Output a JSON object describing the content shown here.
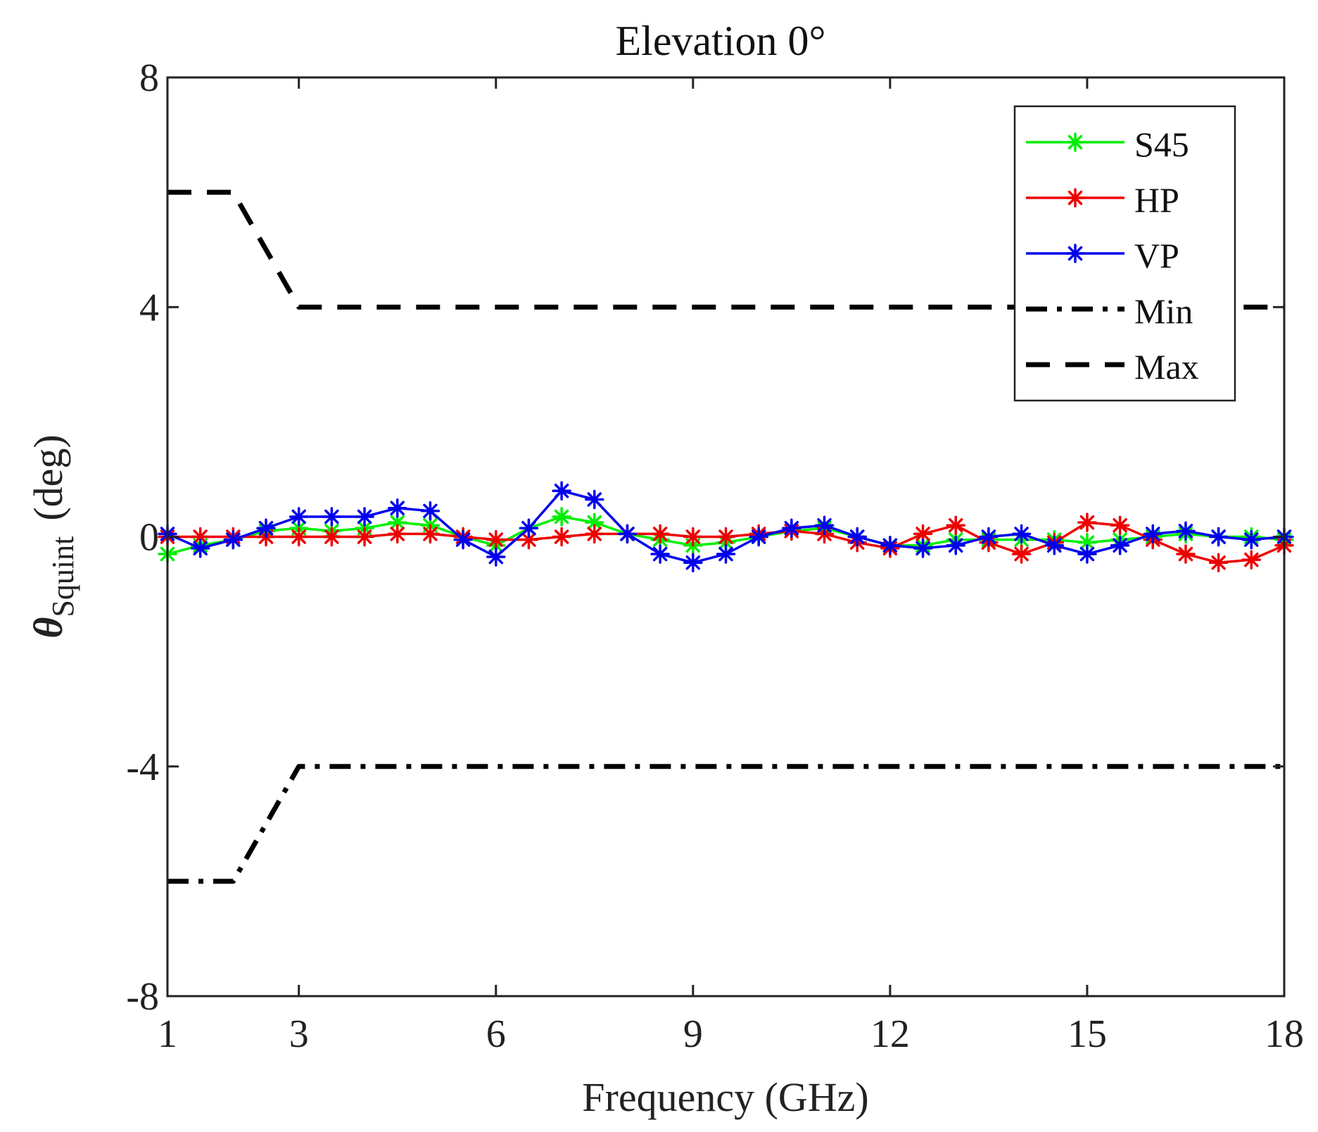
{
  "chart_data": {
    "type": "line",
    "title": "Elevation 0°",
    "xlabel": "Frequency (GHz)",
    "ylabel_symbol": "θ",
    "ylabel_subscript": "Squint",
    "ylabel_unit": "(deg)",
    "xlim": [
      1,
      18
    ],
    "ylim": [
      -8,
      8
    ],
    "xticks": [
      1,
      3,
      6,
      9,
      12,
      15,
      18
    ],
    "yticks": [
      -8,
      -4,
      0,
      4,
      8
    ],
    "ytick_labels": [
      "-8",
      "-4",
      "0",
      "4",
      "8"
    ],
    "grid": false,
    "legend_position": "top-right",
    "series": [
      {
        "name": "S45",
        "color": "#00ee00",
        "marker": "asterisk",
        "style": "solid",
        "x": [
          1,
          1.5,
          2,
          2.5,
          3,
          3.5,
          4,
          4.5,
          5,
          5.5,
          6,
          6.5,
          7,
          7.5,
          8,
          8.5,
          9,
          9.5,
          10,
          10.5,
          11,
          11.5,
          12,
          12.5,
          13,
          13.5,
          14,
          14.5,
          15,
          15.5,
          16,
          16.5,
          17,
          17.5,
          18
        ],
        "y": [
          -0.3,
          -0.15,
          -0.05,
          0.1,
          0.15,
          0.1,
          0.15,
          0.25,
          0.2,
          0.0,
          -0.15,
          0.15,
          0.35,
          0.25,
          0.05,
          -0.05,
          -0.15,
          -0.1,
          0.0,
          0.1,
          0.15,
          0.0,
          -0.15,
          -0.15,
          -0.05,
          -0.05,
          -0.05,
          -0.05,
          -0.1,
          -0.05,
          0.0,
          0.05,
          0.0,
          0.0,
          -0.05
        ]
      },
      {
        "name": "HP",
        "color": "#ee0000",
        "marker": "asterisk",
        "style": "solid",
        "x": [
          1,
          1.5,
          2,
          2.5,
          3,
          3.5,
          4,
          4.5,
          5,
          5.5,
          6,
          6.5,
          7,
          7.5,
          8,
          8.5,
          9,
          9.5,
          10,
          10.5,
          11,
          11.5,
          12,
          12.5,
          13,
          13.5,
          14,
          14.5,
          15,
          15.5,
          16,
          16.5,
          17,
          17.5,
          18
        ],
        "y": [
          0.0,
          0.0,
          0.0,
          0.0,
          0.0,
          0.0,
          0.0,
          0.05,
          0.05,
          0.0,
          -0.05,
          -0.05,
          0.0,
          0.05,
          0.05,
          0.05,
          0.0,
          0.0,
          0.05,
          0.1,
          0.05,
          -0.1,
          -0.2,
          0.05,
          0.2,
          -0.1,
          -0.3,
          -0.1,
          0.25,
          0.2,
          -0.05,
          -0.3,
          -0.45,
          -0.4,
          -0.15
        ]
      },
      {
        "name": "VP",
        "color": "#0000ee",
        "marker": "asterisk",
        "style": "solid",
        "x": [
          1,
          1.5,
          2,
          2.5,
          3,
          3.5,
          4,
          4.5,
          5,
          5.5,
          6,
          6.5,
          7,
          7.5,
          8,
          8.5,
          9,
          9.5,
          10,
          10.5,
          11,
          11.5,
          12,
          12.5,
          13,
          13.5,
          14,
          14.5,
          15,
          15.5,
          16,
          16.5,
          17,
          17.5,
          18
        ],
        "y": [
          0.05,
          -0.2,
          -0.05,
          0.15,
          0.35,
          0.35,
          0.35,
          0.5,
          0.45,
          -0.05,
          -0.35,
          0.15,
          0.8,
          0.65,
          0.05,
          -0.3,
          -0.45,
          -0.3,
          0.0,
          0.15,
          0.2,
          0.0,
          -0.15,
          -0.2,
          -0.15,
          0.0,
          0.05,
          -0.15,
          -0.3,
          -0.15,
          0.05,
          0.1,
          0.0,
          -0.05,
          0.0
        ]
      },
      {
        "name": "Min",
        "color": "#000000",
        "marker": "none",
        "style": "dashdot",
        "x": [
          1,
          2,
          3,
          18
        ],
        "y": [
          -6,
          -6,
          -4,
          -4
        ]
      },
      {
        "name": "Max",
        "color": "#000000",
        "marker": "none",
        "style": "dashed",
        "x": [
          1,
          2,
          3,
          18
        ],
        "y": [
          6,
          6,
          4,
          4
        ]
      }
    ]
  }
}
